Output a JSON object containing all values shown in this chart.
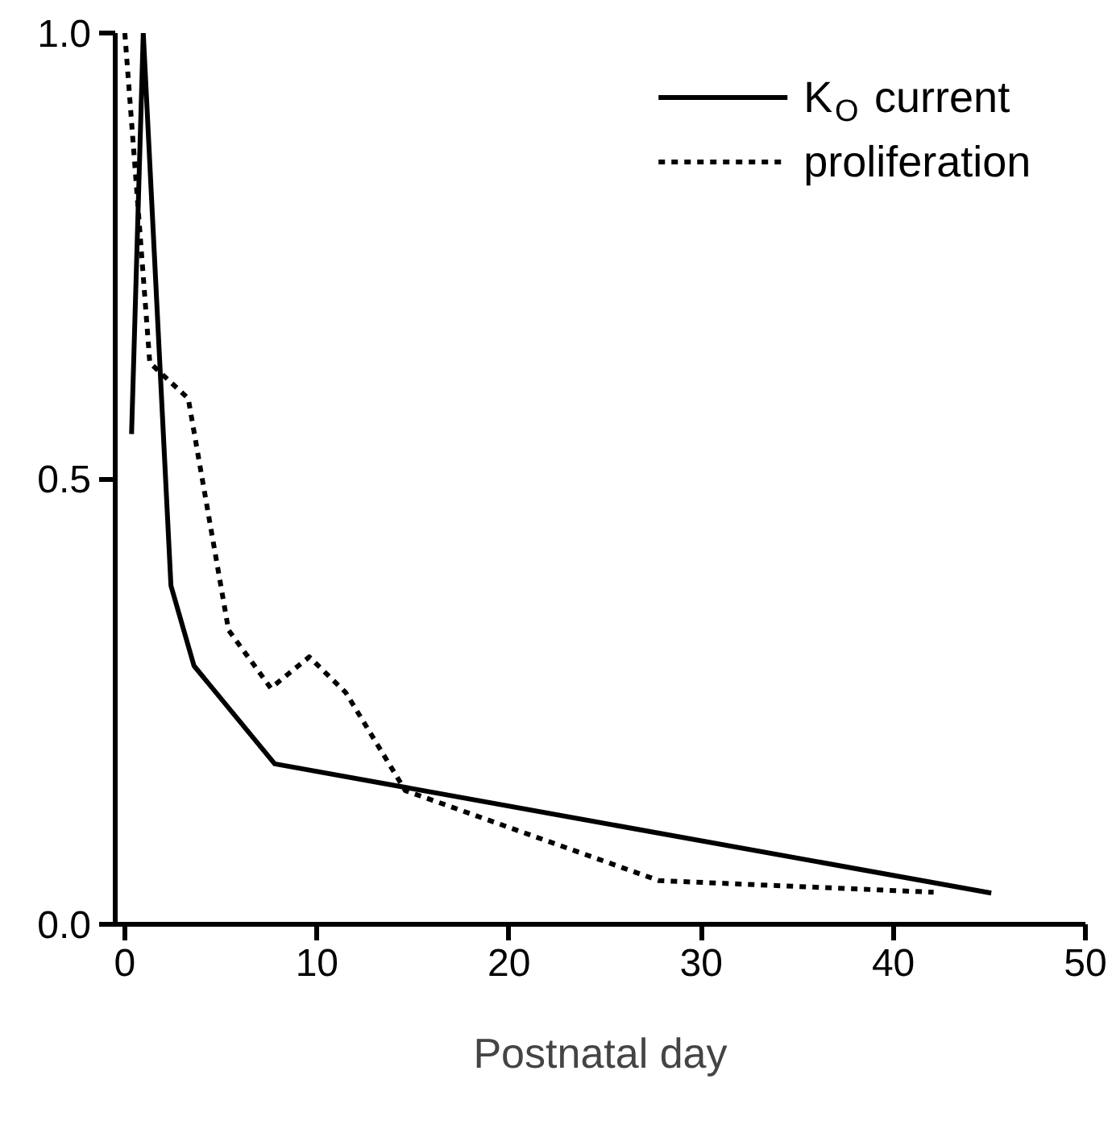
{
  "chart_data": {
    "type": "line",
    "xlabel": "Postnatal day",
    "xlim": [
      -0.5,
      50
    ],
    "xticks": [
      0,
      10,
      20,
      30,
      40,
      50
    ],
    "ylim": [
      0,
      1.0
    ],
    "yticks": [
      {
        "value": 0,
        "label": "0.0"
      },
      {
        "value": 0.5,
        "label": "0.5"
      },
      {
        "value": 1.0,
        "label": "1.0"
      }
    ],
    "grid": false,
    "legend": "top right",
    "marker": "none",
    "series": [
      {
        "name": "K$_{O}$ current",
        "color": "#000000",
        "line_style": "solid",
        "x": [
          0.35,
          0.96,
          2.4,
          3.6,
          7.8,
          45.1
        ],
        "values": [
          0.55,
          1.0,
          0.38,
          0.29,
          0.18,
          0.035
        ]
      },
      {
        "name": "proliferation",
        "color": "#000000",
        "line_style": "dotted",
        "x": [
          0,
          1.3,
          3.3,
          5.4,
          7.6,
          9.6,
          11.5,
          14.6,
          27.8,
          42.1
        ],
        "values": [
          1.0,
          0.63,
          0.59,
          0.33,
          0.265,
          0.3,
          0.26,
          0.15,
          0.049,
          0.036
        ]
      }
    ]
  }
}
